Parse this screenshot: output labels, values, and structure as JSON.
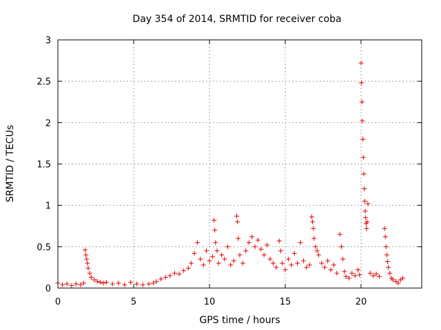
{
  "chart_data": {
    "type": "scatter",
    "title": "Day 354 of 2014, SRMTID for receiver coba",
    "xlabel": "GPS time / hours",
    "ylabel": "SRMTID / TECUs",
    "xlim": [
      0,
      24
    ],
    "ylim": [
      0,
      3
    ],
    "xticks": [
      0,
      5,
      10,
      15,
      20
    ],
    "xtick_labels": [
      "0",
      "5",
      "10",
      "15",
      "20"
    ],
    "yticks": [
      0,
      0.5,
      1,
      1.5,
      2,
      2.5,
      3
    ],
    "ytick_labels": [
      "0",
      "0.5",
      "1",
      "1.5",
      "2",
      "2.5",
      "3"
    ],
    "grid": true,
    "marker": "+",
    "color": "#e00000",
    "series": [
      {
        "name": "SRMTID",
        "segments": [
          {
            "x": [
              0.0,
              0.3,
              0.6,
              0.9,
              1.2,
              1.5,
              1.7
            ],
            "y": [
              0.06,
              0.04,
              0.05,
              0.03,
              0.05,
              0.04,
              0.06
            ]
          },
          {
            "x": [
              1.8,
              1.85,
              1.9,
              1.95,
              2.0,
              2.1,
              2.2,
              2.4,
              2.6,
              2.8,
              3.0
            ],
            "y": [
              0.46,
              0.4,
              0.35,
              0.3,
              0.24,
              0.18,
              0.13,
              0.1,
              0.08,
              0.07,
              0.06
            ]
          },
          {
            "x": [
              3.2,
              3.6,
              4.0,
              4.4,
              4.8,
              5.2,
              5.6,
              6.0,
              6.3
            ],
            "y": [
              0.07,
              0.05,
              0.06,
              0.04,
              0.07,
              0.05,
              0.04,
              0.05,
              0.06
            ]
          },
          {
            "x": [
              6.5,
              6.8,
              7.1,
              7.4,
              7.7,
              8.0,
              8.3,
              8.6
            ],
            "y": [
              0.08,
              0.11,
              0.13,
              0.15,
              0.18,
              0.17,
              0.21,
              0.24
            ]
          },
          {
            "x": [
              8.8,
              9.0,
              9.2,
              9.4,
              9.6,
              9.8,
              10.0,
              10.2
            ],
            "y": [
              0.3,
              0.42,
              0.55,
              0.35,
              0.28,
              0.45,
              0.33,
              0.38
            ]
          },
          {
            "x": [
              10.3,
              10.35,
              10.4,
              10.5,
              10.6,
              10.8,
              11.0,
              11.2,
              11.4,
              11.6
            ],
            "y": [
              0.82,
              0.7,
              0.55,
              0.45,
              0.3,
              0.4,
              0.35,
              0.5,
              0.28,
              0.33
            ]
          },
          {
            "x": [
              11.8,
              11.85,
              11.9,
              12.0,
              12.2,
              12.4,
              12.6,
              12.8,
              13.0,
              13.2,
              13.4,
              13.6,
              13.8,
              14.0,
              14.2,
              14.4
            ],
            "y": [
              0.87,
              0.8,
              0.6,
              0.4,
              0.3,
              0.45,
              0.55,
              0.62,
              0.5,
              0.58,
              0.47,
              0.4,
              0.52,
              0.35,
              0.3,
              0.25
            ]
          },
          {
            "x": [
              14.6,
              14.7,
              14.8,
              15.0,
              15.2,
              15.4,
              15.6,
              15.8,
              16.0,
              16.2,
              16.4,
              16.6
            ],
            "y": [
              0.57,
              0.45,
              0.3,
              0.22,
              0.35,
              0.28,
              0.42,
              0.3,
              0.55,
              0.33,
              0.25,
              0.28
            ]
          },
          {
            "x": [
              16.75,
              16.8,
              16.85,
              16.9,
              17.0,
              17.1,
              17.2,
              17.4,
              17.6,
              17.8,
              18.0,
              18.2,
              18.4
            ],
            "y": [
              0.86,
              0.8,
              0.72,
              0.6,
              0.5,
              0.45,
              0.4,
              0.3,
              0.25,
              0.33,
              0.22,
              0.28,
              0.18
            ]
          },
          {
            "x": [
              18.6,
              18.7,
              18.8,
              18.9,
              19.0,
              19.2,
              19.4,
              19.6,
              19.8,
              19.9
            ],
            "y": [
              0.65,
              0.5,
              0.35,
              0.2,
              0.14,
              0.12,
              0.18,
              0.15,
              0.22,
              0.16
            ]
          },
          {
            "x": [
              20.0,
              20.03,
              20.06,
              20.09,
              20.12,
              20.15,
              20.18,
              20.21,
              20.24,
              20.27,
              20.3,
              20.33,
              20.36,
              20.4,
              20.45
            ],
            "y": [
              2.72,
              2.48,
              2.25,
              2.02,
              1.8,
              1.58,
              1.38,
              1.2,
              1.05,
              0.93,
              0.85,
              0.78,
              0.72,
              0.8,
              1.02
            ]
          },
          {
            "x": [
              20.6,
              20.8,
              21.0,
              21.2
            ],
            "y": [
              0.18,
              0.15,
              0.17,
              0.14
            ]
          },
          {
            "x": [
              21.55,
              21.6,
              21.65,
              21.7,
              21.75,
              21.8,
              21.9,
              22.0,
              22.1
            ],
            "y": [
              0.72,
              0.62,
              0.5,
              0.4,
              0.32,
              0.25,
              0.18,
              0.12,
              0.1
            ]
          },
          {
            "x": [
              22.3,
              22.45,
              22.6,
              22.75
            ],
            "y": [
              0.08,
              0.06,
              0.1,
              0.12
            ]
          }
        ]
      }
    ]
  }
}
